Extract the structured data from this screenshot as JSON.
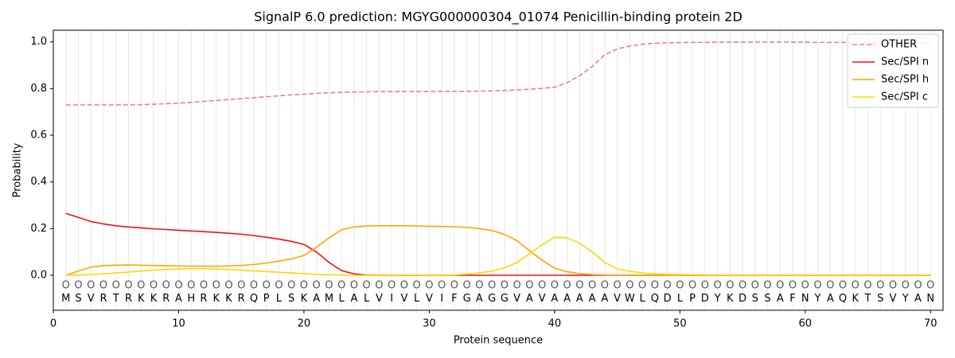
{
  "chart_data": {
    "type": "line",
    "title": "SignalP 6.0 prediction: MGYG000000304_01074 Penicillin-binding protein 2D",
    "xlabel": "Protein sequence",
    "ylabel": "Probability",
    "x": [
      1,
      2,
      3,
      4,
      5,
      6,
      7,
      8,
      9,
      10,
      11,
      12,
      13,
      14,
      15,
      16,
      17,
      18,
      19,
      20,
      21,
      22,
      23,
      24,
      25,
      26,
      27,
      28,
      29,
      30,
      31,
      32,
      33,
      34,
      35,
      36,
      37,
      38,
      39,
      40,
      41,
      42,
      43,
      44,
      45,
      46,
      47,
      48,
      49,
      50,
      51,
      52,
      53,
      54,
      55,
      56,
      57,
      58,
      59,
      60,
      61,
      62,
      63,
      64,
      65,
      66,
      67,
      68,
      69,
      70
    ],
    "residues": [
      "M",
      "S",
      "V",
      "R",
      "T",
      "R",
      "K",
      "K",
      "R",
      "A",
      "H",
      "R",
      "K",
      "K",
      "R",
      "Q",
      "P",
      "L",
      "S",
      "K",
      "A",
      "M",
      "L",
      "A",
      "L",
      "V",
      "I",
      "V",
      "L",
      "V",
      "I",
      "F",
      "G",
      "A",
      "G",
      "G",
      "V",
      "A",
      "V",
      "A",
      "A",
      "A",
      "A",
      "A",
      "V",
      "W",
      "L",
      "Q",
      "D",
      "L",
      "P",
      "D",
      "Y",
      "K",
      "D",
      "S",
      "S",
      "A",
      "F",
      "N",
      "Y",
      "A",
      "Q",
      "K",
      "T",
      "S",
      "V",
      "Y",
      "A",
      "N"
    ],
    "region_labels": [
      "O",
      "O",
      "O",
      "O",
      "O",
      "O",
      "O",
      "O",
      "O",
      "O",
      "O",
      "O",
      "O",
      "O",
      "O",
      "O",
      "O",
      "O",
      "O",
      "O",
      "O",
      "O",
      "O",
      "O",
      "O",
      "O",
      "O",
      "O",
      "O",
      "O",
      "O",
      "O",
      "O",
      "O",
      "O",
      "O",
      "O",
      "O",
      "O",
      "O",
      "O",
      "O",
      "O",
      "O",
      "O",
      "O",
      "O",
      "O",
      "O",
      "O",
      "O",
      "O",
      "O",
      "O",
      "O",
      "O",
      "O",
      "O",
      "O",
      "O",
      "O",
      "O",
      "O",
      "O",
      "O",
      "O",
      "O",
      "O",
      "O",
      "O"
    ],
    "series": [
      {
        "name": "OTHER",
        "color": "#f08080",
        "linestyle": "dashed",
        "values": [
          0.73,
          0.73,
          0.73,
          0.73,
          0.73,
          0.73,
          0.731,
          0.733,
          0.735,
          0.738,
          0.741,
          0.745,
          0.749,
          0.753,
          0.757,
          0.761,
          0.765,
          0.769,
          0.773,
          0.776,
          0.779,
          0.782,
          0.784,
          0.785,
          0.786,
          0.787,
          0.787,
          0.787,
          0.787,
          0.787,
          0.788,
          0.788,
          0.788,
          0.789,
          0.79,
          0.792,
          0.794,
          0.797,
          0.801,
          0.806,
          0.825,
          0.855,
          0.895,
          0.945,
          0.97,
          0.982,
          0.99,
          0.994,
          0.996,
          0.997,
          0.998,
          0.998,
          0.999,
          0.999,
          0.999,
          0.999,
          0.999,
          0.999,
          0.999,
          0.999,
          0.998,
          0.998,
          0.998,
          0.997,
          0.997,
          0.997,
          0.997,
          0.997,
          0.997,
          0.997
        ]
      },
      {
        "name": "Sec/SPI n",
        "color": "#ee1111",
        "linestyle": "solid",
        "values": [
          0.265,
          0.248,
          0.23,
          0.22,
          0.212,
          0.207,
          0.203,
          0.199,
          0.196,
          0.193,
          0.19,
          0.187,
          0.184,
          0.18,
          0.176,
          0.17,
          0.163,
          0.155,
          0.145,
          0.132,
          0.1,
          0.055,
          0.02,
          0.006,
          0.001,
          0,
          0,
          0,
          0,
          0,
          0,
          0,
          0,
          0,
          0,
          0,
          0,
          0,
          0,
          0,
          0,
          0,
          0,
          0,
          0,
          0,
          0,
          0,
          0,
          0,
          0,
          0,
          0,
          0,
          0,
          0,
          0,
          0,
          0,
          0,
          0,
          0,
          0,
          0,
          0,
          0,
          0,
          0,
          0,
          0
        ]
      },
      {
        "name": "Sec/SPI h",
        "color": "#ffa500",
        "linestyle": "solid",
        "values": [
          0,
          0.018,
          0.035,
          0.041,
          0.043,
          0.044,
          0.043,
          0.042,
          0.041,
          0.04,
          0.039,
          0.039,
          0.039,
          0.04,
          0.042,
          0.046,
          0.052,
          0.061,
          0.07,
          0.085,
          0.12,
          0.16,
          0.195,
          0.207,
          0.211,
          0.212,
          0.212,
          0.212,
          0.211,
          0.21,
          0.209,
          0.208,
          0.205,
          0.2,
          0.192,
          0.175,
          0.148,
          0.105,
          0.065,
          0.03,
          0.015,
          0.007,
          0.003,
          0.001,
          0,
          0,
          0,
          0,
          0,
          0,
          0,
          0,
          0,
          0,
          0,
          0,
          0,
          0,
          0,
          0,
          0,
          0,
          0,
          0,
          0,
          0,
          0,
          0,
          0,
          0
        ]
      },
      {
        "name": "Sec/SPI c",
        "color": "#ffd700",
        "linestyle": "solid",
        "values": [
          0,
          0.001,
          0.003,
          0.006,
          0.01,
          0.014,
          0.018,
          0.022,
          0.025,
          0.027,
          0.028,
          0.028,
          0.027,
          0.025,
          0.022,
          0.019,
          0.016,
          0.013,
          0.01,
          0.007,
          0.004,
          0.002,
          0.001,
          0,
          0,
          0,
          0,
          0,
          0,
          0,
          0,
          0.001,
          0.005,
          0.01,
          0.018,
          0.032,
          0.055,
          0.092,
          0.13,
          0.163,
          0.16,
          0.137,
          0.1,
          0.055,
          0.028,
          0.017,
          0.01,
          0.006,
          0.004,
          0.003,
          0.002,
          0.001,
          0,
          0,
          0,
          0,
          0,
          0,
          0,
          0,
          0,
          0,
          0,
          0,
          0,
          0,
          0,
          0,
          0,
          0
        ]
      }
    ],
    "xlim": [
      0,
      71
    ],
    "ylim": [
      -0.15,
      1.05
    ],
    "xticks": [
      0,
      10,
      20,
      30,
      40,
      50,
      60,
      70
    ],
    "yticks": [
      {
        "value": 0,
        "label": "0.0"
      },
      {
        "value": 0.2,
        "label": "0.2"
      },
      {
        "value": 0.4,
        "label": "0.4"
      },
      {
        "value": 0.6,
        "label": "0.6"
      },
      {
        "value": 0.8,
        "label": "0.8"
      },
      {
        "value": 1,
        "label": "1.0"
      }
    ],
    "legend": "upper right"
  }
}
